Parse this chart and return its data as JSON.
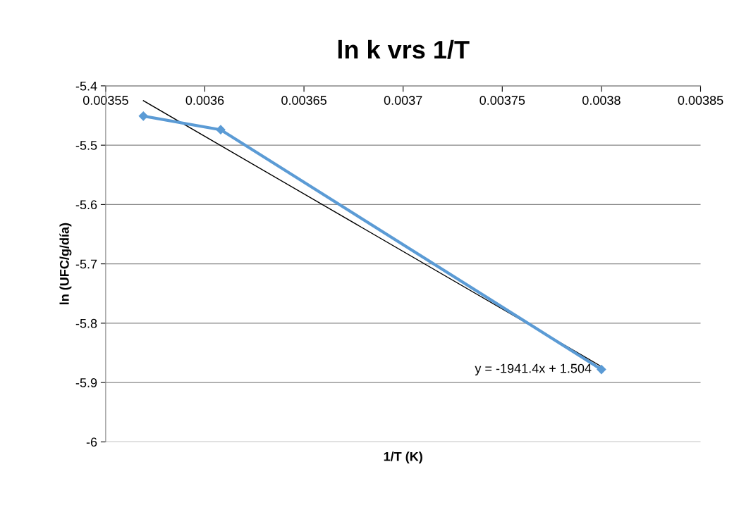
{
  "chart_data": {
    "type": "line",
    "title": "ln k vrs 1/T",
    "xlabel": "1/T (K)",
    "ylabel": "ln (UFC/g/día)",
    "series": [
      {
        "color": "#5b9bd5",
        "x": [
          0.003569,
          0.003608,
          0.0038
        ],
        "values": [
          -5.451,
          -5.474,
          -5.878
        ],
        "marker": "diamond"
      },
      {
        "type": "line",
        "color": "#000000",
        "x": [
          0.003569,
          0.0038
        ],
        "values": [
          -5.425,
          -5.873
        ],
        "marker": "none"
      }
    ],
    "xlim": [
      0.00355,
      0.00385
    ],
    "xticks": [
      0.00355,
      0.0036,
      0.00365,
      0.0037,
      0.00375,
      0.0038,
      0.00385
    ],
    "ylim": [
      -6,
      -5.4
    ],
    "yticks": [
      -6,
      -5.9,
      -5.8,
      -5.7,
      -5.6,
      -5.5,
      -5.4
    ],
    "grid": "y",
    "legend": false,
    "annotations": [
      {
        "text": "y = -1941.4x + 1.504",
        "x": 0.0038,
        "y": -5.878
      }
    ]
  }
}
